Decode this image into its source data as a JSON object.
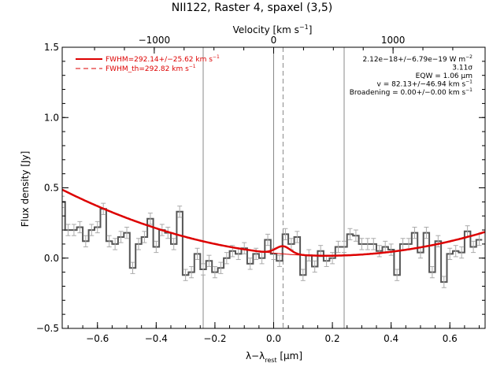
{
  "chart_data": {
    "type": "line",
    "title": "NII122, Raster 4, spaxel (3,5)",
    "xlabel_main": "λ−λ",
    "xlabel_sub": "rest",
    "xlabel_unit": " [μm]",
    "ylabel": "Flux density [Jy]",
    "top_axis_label": "Velocity [km s",
    "top_axis_label_sup": "−1",
    "top_axis_label_end": "]",
    "xlim": [
      -0.72,
      0.72
    ],
    "ylim": [
      -0.5,
      1.5
    ],
    "x_ticks": [
      -0.6,
      -0.4,
      -0.2,
      0.0,
      0.2,
      0.4,
      0.6
    ],
    "x_tick_labels": [
      "−0.6",
      "−0.4",
      "−0.2",
      "0.0",
      "0.2",
      "0.4",
      "0.6"
    ],
    "y_ticks": [
      -0.5,
      0.0,
      0.5,
      1.0,
      1.5
    ],
    "y_tick_labels": [
      "−0.5",
      "0.0",
      "0.5",
      "1.0",
      "1.5"
    ],
    "top_ticks_velocity": [
      -1000,
      0,
      1000
    ],
    "top_tick_labels": [
      "−1000",
      "0",
      "1000"
    ],
    "vertical_lines_solid": [
      -0.24,
      0.0,
      0.24
    ],
    "vertical_line_dashed": 0.032,
    "colors": {
      "data": "#555555",
      "errorbar": "#aaaaaa",
      "fit": "#dd0000",
      "vline": "#888888"
    },
    "spectrum": {
      "x": [
        -0.72,
        -0.7,
        -0.68,
        -0.66,
        -0.64,
        -0.62,
        -0.6,
        -0.58,
        -0.56,
        -0.54,
        -0.52,
        -0.5,
        -0.48,
        -0.46,
        -0.44,
        -0.42,
        -0.4,
        -0.38,
        -0.36,
        -0.34,
        -0.32,
        -0.3,
        -0.28,
        -0.26,
        -0.24,
        -0.22,
        -0.2,
        -0.18,
        -0.16,
        -0.14,
        -0.12,
        -0.1,
        -0.08,
        -0.06,
        -0.04,
        -0.02,
        0.0,
        0.02,
        0.04,
        0.06,
        0.08,
        0.1,
        0.12,
        0.14,
        0.16,
        0.18,
        0.2,
        0.22,
        0.24,
        0.26,
        0.28,
        0.3,
        0.32,
        0.34,
        0.36,
        0.38,
        0.4,
        0.42,
        0.44,
        0.46,
        0.48,
        0.5,
        0.52,
        0.54,
        0.56,
        0.58,
        0.6,
        0.62,
        0.64,
        0.66,
        0.68,
        0.7
      ],
      "flux": [
        0.4,
        0.2,
        0.2,
        0.22,
        0.12,
        0.2,
        0.22,
        0.35,
        0.12,
        0.1,
        0.15,
        0.18,
        -0.07,
        0.1,
        0.15,
        0.28,
        0.08,
        0.2,
        0.18,
        0.1,
        0.33,
        -0.12,
        -0.1,
        0.03,
        -0.08,
        -0.02,
        -0.1,
        -0.07,
        0.0,
        0.05,
        0.03,
        0.07,
        -0.04,
        0.03,
        0.0,
        0.13,
        0.03,
        -0.02,
        0.17,
        0.1,
        0.15,
        -0.12,
        0.02,
        -0.06,
        0.05,
        -0.02,
        0.0,
        0.08,
        0.08,
        0.17,
        0.16,
        0.1,
        0.1,
        0.1,
        0.05,
        0.08,
        0.06,
        -0.12,
        0.1,
        0.1,
        0.18,
        0.04,
        0.18,
        -0.1,
        0.12,
        -0.17,
        0.03,
        0.05,
        0.04,
        0.19,
        0.08,
        0.13
      ],
      "error": 0.04
    },
    "fit": {
      "continuum_coeffs": [
        0.017,
        -0.16,
        0.58
      ],
      "continuum_center": 0.18,
      "gaussian_center": 0.032,
      "gaussian_amplitude": 0.055,
      "gaussian_sigma": 0.025
    },
    "legend": [
      {
        "label": "FWHM=292.14+/−25.62 km s",
        "sup": "−1",
        "style": "solid"
      },
      {
        "label": "FWHM_th=292.82 km s",
        "sup": "−1",
        "style": "dashed"
      }
    ],
    "annotations": [
      {
        "text": "2.12e−18+/−6.79e−19 W m",
        "sup": "−2"
      },
      {
        "text": "3.11σ",
        "sup": ""
      },
      {
        "text": "EQW = 1.06 μm",
        "sup": ""
      },
      {
        "text": "v = 82.13+/−46.94 km s",
        "sup": "−1"
      },
      {
        "text": "Broadening = 0.00+/−0.00 km s",
        "sup": "−1"
      }
    ]
  }
}
